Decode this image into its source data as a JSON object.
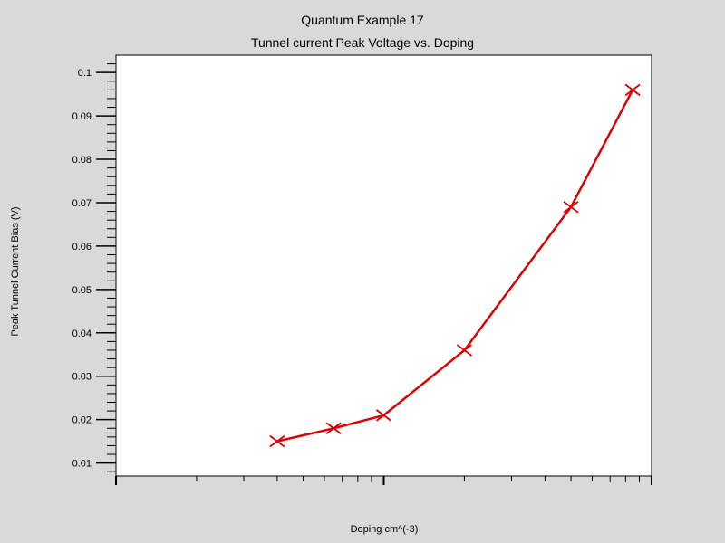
{
  "chart_data": {
    "type": "line",
    "title": "Quantum Example 17",
    "subtitle": "Tunnel current Peak Voltage vs. Doping",
    "xlabel": "Doping  cm^(-3)",
    "ylabel": "Peak Tunnel Current Bias  (V)",
    "x_scale": "log",
    "xlim": [
      1e+17,
      1e+19
    ],
    "ylim": [
      0.007,
      0.104
    ],
    "y_ticks": [
      0.01,
      0.02,
      0.03,
      0.04,
      0.05,
      0.06,
      0.07,
      0.08,
      0.09,
      0.1
    ],
    "y_tick_labels": [
      "0.01",
      "0.02",
      "0.03",
      "0.04",
      "0.05",
      "0.06",
      "0.07",
      "0.08",
      "0.09",
      "0.1"
    ],
    "x_major_ticks": [
      1e+17,
      1e+18,
      1e+19
    ],
    "grid": false,
    "series": [
      {
        "x": [
          4e+17,
          6.5e+17,
          1e+18,
          2e+18,
          5e+18,
          8.5e+18
        ],
        "y": [
          0.015,
          0.018,
          0.021,
          0.036,
          0.069,
          0.096
        ],
        "color": "#e00000",
        "marker": "x"
      }
    ],
    "colors": {
      "background": "#d9d9d9",
      "plot_area": "#ffffff",
      "series": "#e00000"
    }
  }
}
